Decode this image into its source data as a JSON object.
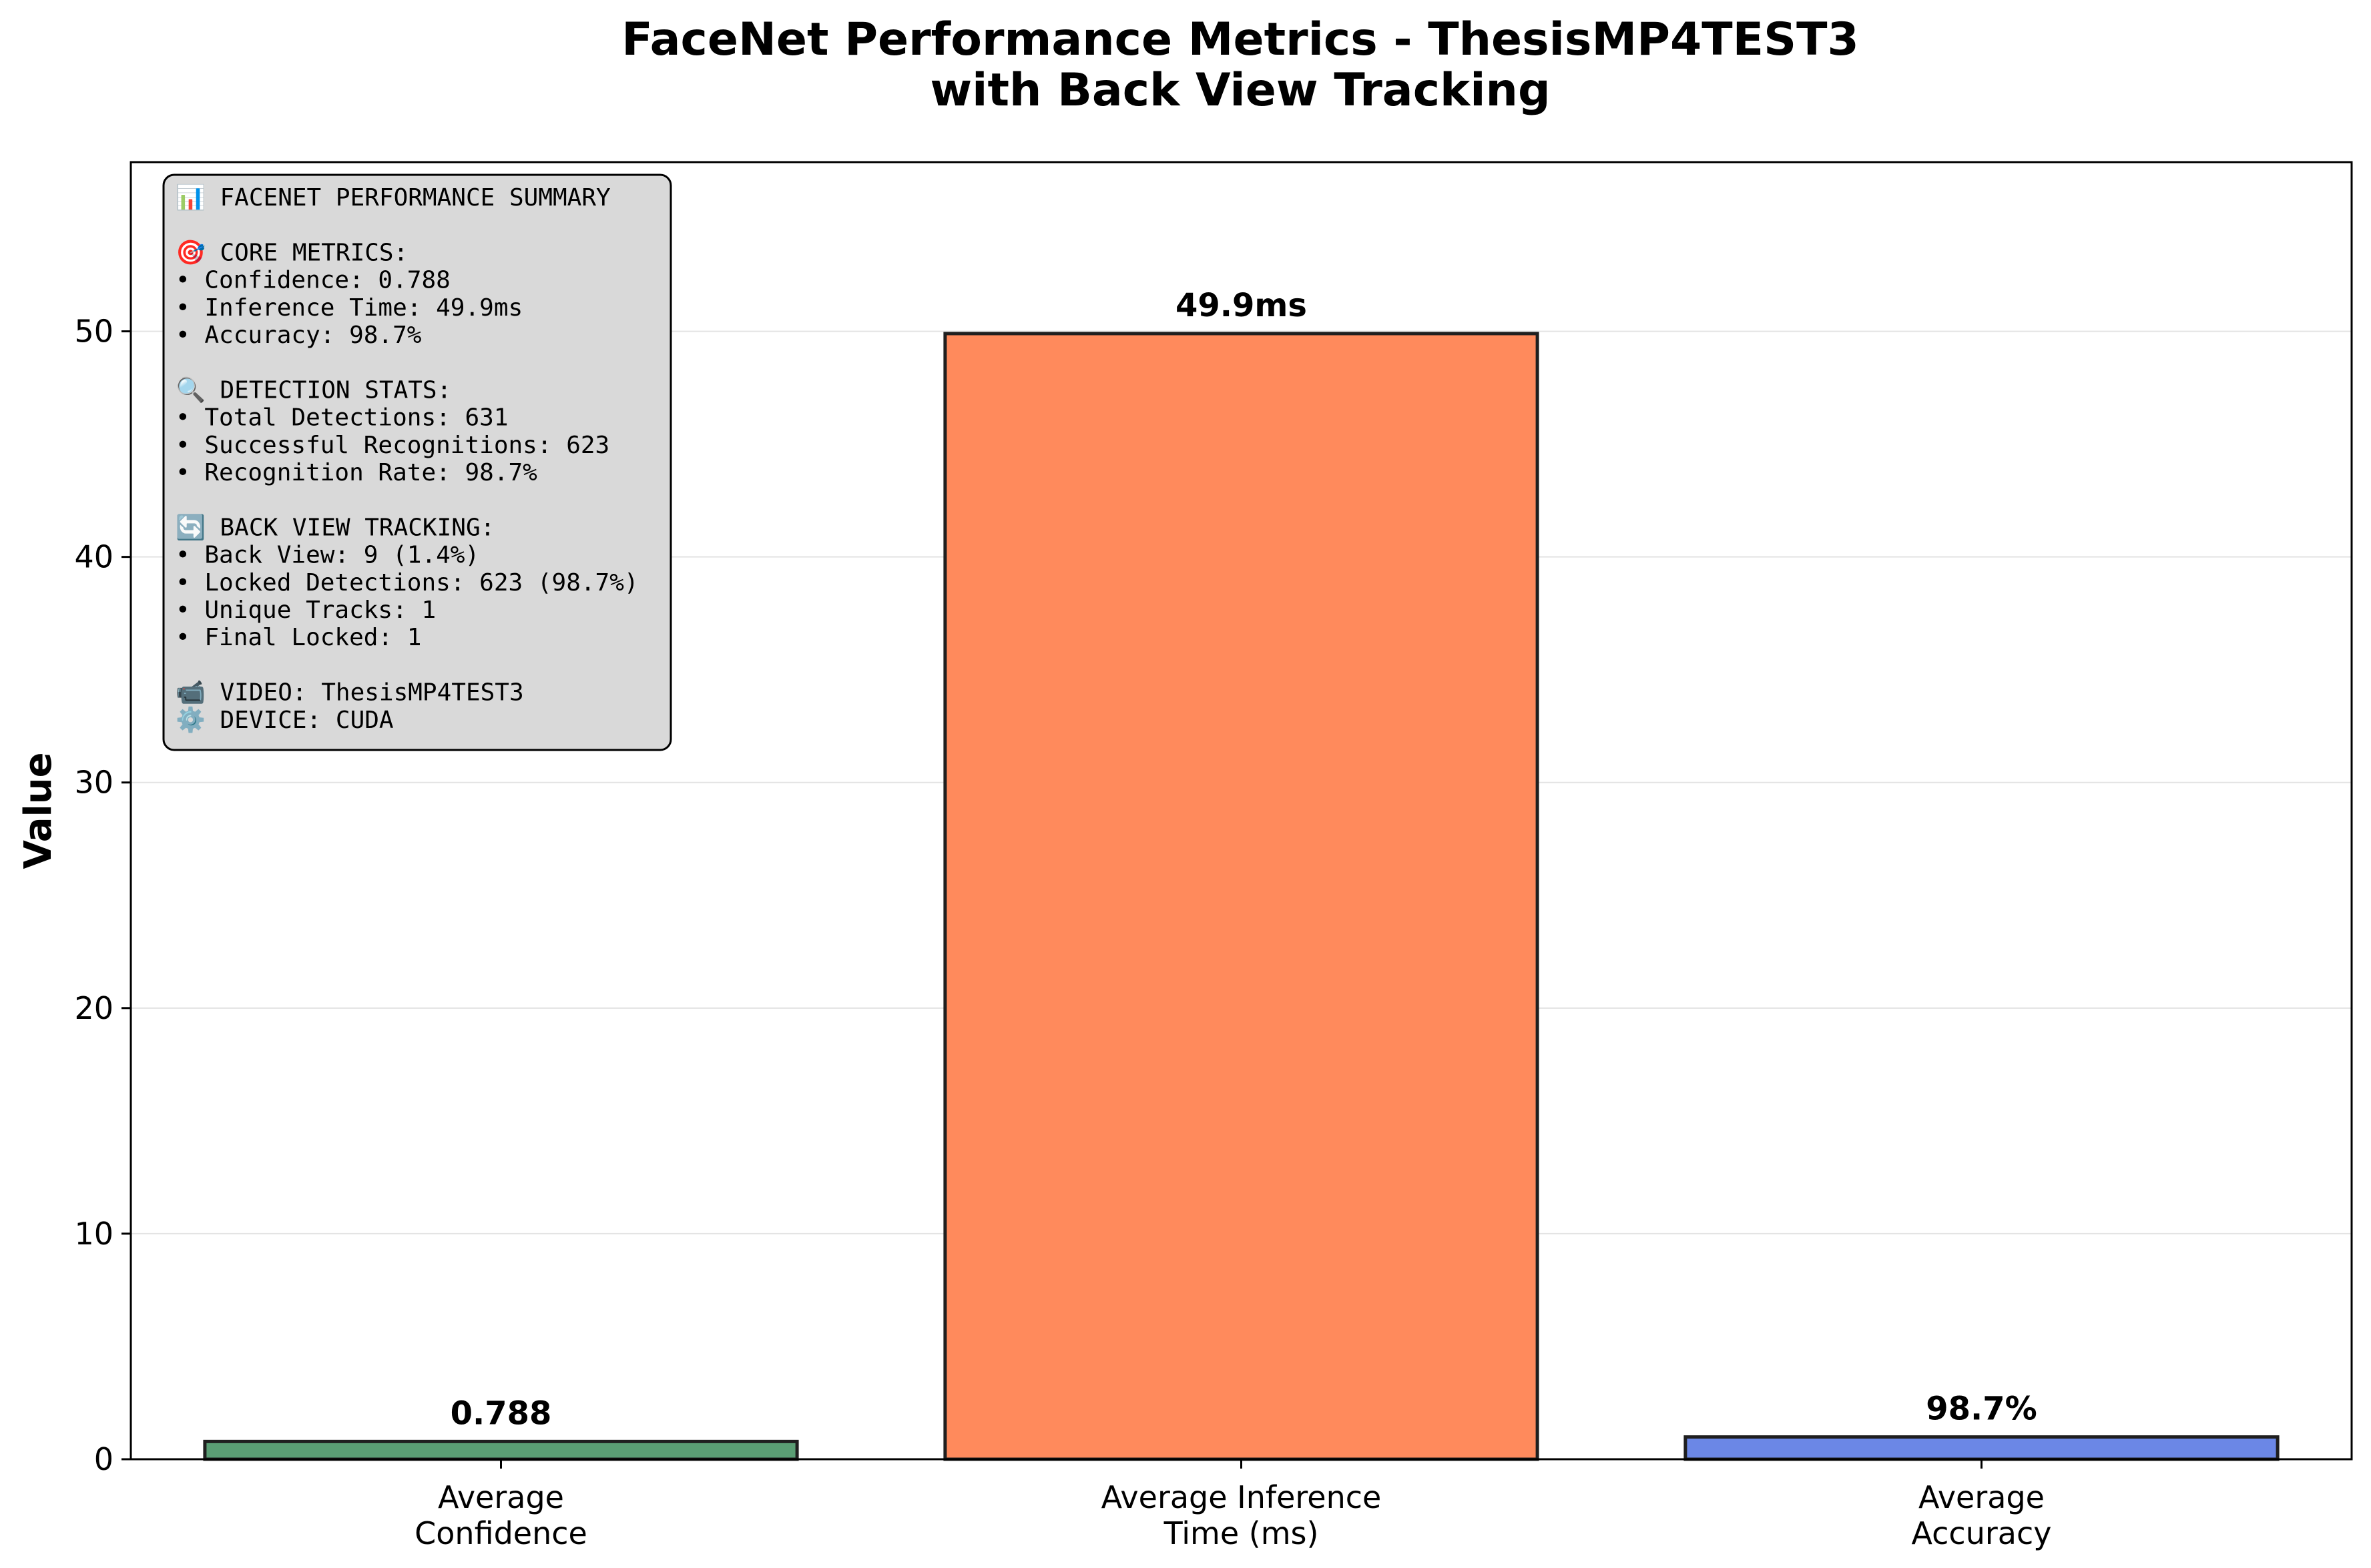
{
  "chart_data": {
    "type": "bar",
    "title_lines": [
      "FaceNet Performance Metrics - ThesisMP4TEST3",
      "with Back View Tracking"
    ],
    "ylabel": "Value",
    "xlabel": "",
    "ylim": [
      0,
      57.5
    ],
    "yticks": [
      0,
      10,
      20,
      30,
      40,
      50
    ],
    "grid": "y",
    "categories": [
      [
        "Average",
        "Confidence"
      ],
      [
        "Average Inference",
        "Time (ms)"
      ],
      [
        "Average",
        "Accuracy"
      ]
    ],
    "values": [
      0.788,
      49.9,
      0.987
    ],
    "value_labels": [
      "0.788",
      "49.9ms",
      "98.7%"
    ],
    "colors": [
      "#5a9e74",
      "#ff8a5c",
      "#6b87e6"
    ],
    "summary_box": {
      "placement": "top-left",
      "background": "#d9d9d9",
      "lines": [
        "📊 FACENET PERFORMANCE SUMMARY",
        "",
        "🎯 CORE METRICS:",
        "• Confidence: 0.788",
        "• Inference Time: 49.9ms",
        "• Accuracy: 98.7%",
        "",
        "🔍 DETECTION STATS:",
        "• Total Detections: 631",
        "• Successful Recognitions: 623",
        "• Recognition Rate: 98.7%",
        "",
        "🔄 BACK VIEW TRACKING:",
        "• Back View: 9 (1.4%)",
        "• Locked Detections: 623 (98.7%)",
        "• Unique Tracks: 1",
        "• Final Locked: 1",
        "",
        "📹 VIDEO: ThesisMP4TEST3",
        "⚙️  DEVICE: CUDA"
      ]
    }
  }
}
